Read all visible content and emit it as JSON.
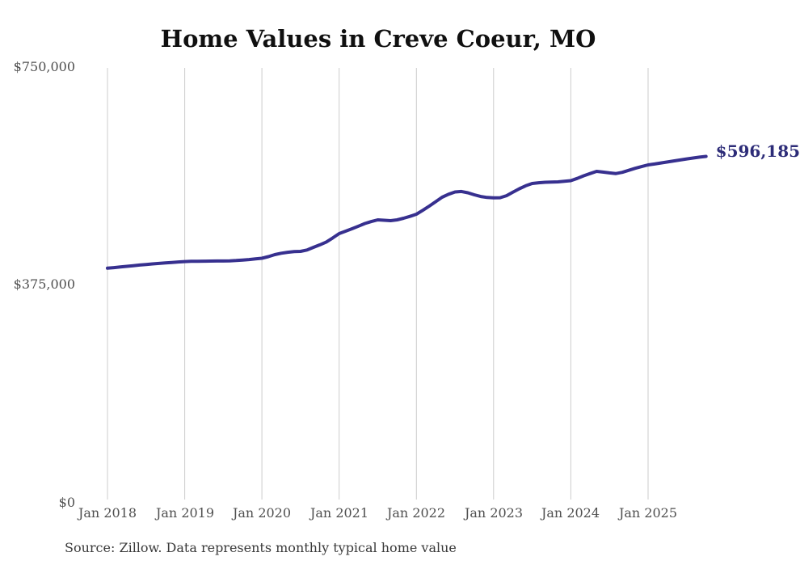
{
  "chart": {
    "title": "Home Values in Creve Coeur, MO",
    "end_label": "$596,185",
    "source_note": "Source: Zillow. Data represents monthly typical home value"
  },
  "colors": {
    "line": "#37308f",
    "end_label_text": "#2d2c78",
    "gridline": "#cccccc",
    "axis_text": "#4f4f4f",
    "title_text": "#101010",
    "source_text": "#3a3a3a",
    "background": "#ffffff"
  },
  "chart_data": {
    "type": "line",
    "title": "Home Values in Creve Coeur, MO",
    "series_name": "Monthly typical home value (Zillow)",
    "interval": "monthly",
    "x_start": "2018-01",
    "x_end": "2025-10",
    "x_tick_labels": [
      "Jan 2018",
      "Jan 2019",
      "Jan 2020",
      "Jan 2021",
      "Jan 2022",
      "Jan 2023",
      "Jan 2024",
      "Jan 2025"
    ],
    "y_tick_labels": [
      "$750,000",
      "$375,000",
      "$0"
    ],
    "y_ticks": [
      750000,
      375000,
      0
    ],
    "ylim": [
      0,
      750000
    ],
    "grid": "vertical-only",
    "legend": "none",
    "last_value": 596185,
    "last_value_label": "$596,185",
    "values": [
      402000,
      403000,
      404100,
      405200,
      406300,
      407400,
      408400,
      409400,
      410300,
      411200,
      412000,
      412800,
      413500,
      413900,
      414100,
      414200,
      414300,
      414400,
      414500,
      414800,
      415300,
      416100,
      417000,
      418100,
      419200,
      422000,
      425600,
      428000,
      429700,
      430700,
      431200,
      433500,
      438200,
      442500,
      447500,
      454500,
      462100,
      466300,
      470500,
      475000,
      479600,
      483000,
      486000,
      485200,
      484500,
      486000,
      488800,
      492000,
      495800,
      502500,
      509800,
      517500,
      525300,
      530500,
      534400,
      535300,
      533000,
      529500,
      526500,
      524800,
      524300,
      524500,
      528000,
      534000,
      540000,
      545200,
      549200,
      550400,
      551300,
      551700,
      552000,
      553000,
      554100,
      558000,
      562500,
      566500,
      570200,
      569000,
      567500,
      566500,
      568500,
      572000,
      575500,
      578500,
      581400,
      583000,
      584800,
      586500,
      588300,
      590000,
      591800,
      593400,
      595000,
      596185
    ]
  }
}
